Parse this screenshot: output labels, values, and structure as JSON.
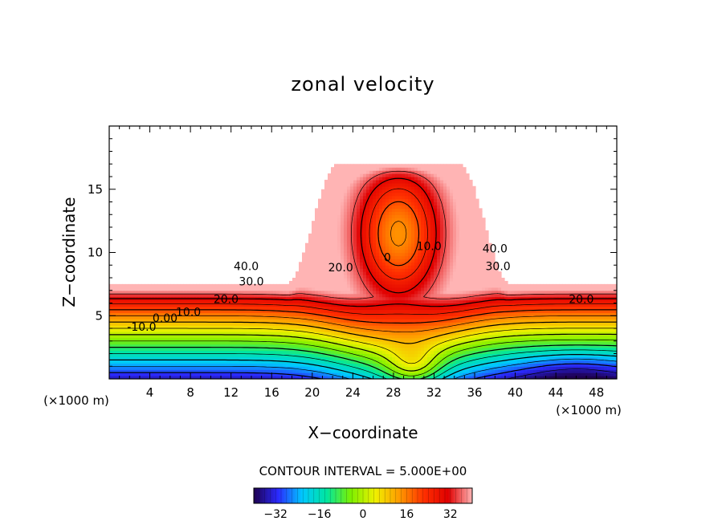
{
  "chart_data": {
    "type": "heatmap",
    "title": "zonal velocity",
    "xlabel": "X−coordinate",
    "ylabel": "Z−coordinate",
    "x_unit_left": "(×1000 m)",
    "x_unit_right": "(×1000 m)",
    "xlim": [
      0,
      50
    ],
    "ylim": [
      0,
      20
    ],
    "x_ticks": [
      4,
      8,
      12,
      16,
      20,
      24,
      28,
      32,
      36,
      40,
      44,
      48
    ],
    "y_ticks": [
      5,
      10,
      15
    ],
    "contour_interval_text": "CONTOUR INTERVAL = 5.000E+00",
    "contour_interval": 5,
    "colorbar": {
      "range": [
        -40,
        40
      ],
      "ticks": [
        -32,
        -16,
        0,
        16,
        32
      ],
      "colormap": [
        "#1e0050",
        "#2a2aff",
        "#00c8ff",
        "#00e6a0",
        "#7cf000",
        "#f0f000",
        "#ff9a00",
        "#ff3000",
        "#e00000",
        "#ffb4b4"
      ]
    },
    "contour_labels": [
      {
        "text": "40.0",
        "x": 13.5,
        "y": 8.6
      },
      {
        "text": "30.0",
        "x": 14.0,
        "y": 7.4
      },
      {
        "text": "20.0",
        "x": 11.5,
        "y": 6.0
      },
      {
        "text": "10.0",
        "x": 7.8,
        "y": 5.0
      },
      {
        "text": "0.00",
        "x": 5.5,
        "y": 4.5
      },
      {
        "text": "-10.0",
        "x": 3.2,
        "y": 3.8
      },
      {
        "text": "20.0",
        "x": 22.8,
        "y": 8.5
      },
      {
        "text": "10.0",
        "x": 31.5,
        "y": 10.2
      },
      {
        "text": "0",
        "x": 27.4,
        "y": 9.3
      },
      {
        "text": "40.0",
        "x": 38.0,
        "y": 10.0
      },
      {
        "text": "30.0",
        "x": 38.3,
        "y": 8.6
      },
      {
        "text": "20.0",
        "x": 46.5,
        "y": 6.0
      }
    ]
  }
}
